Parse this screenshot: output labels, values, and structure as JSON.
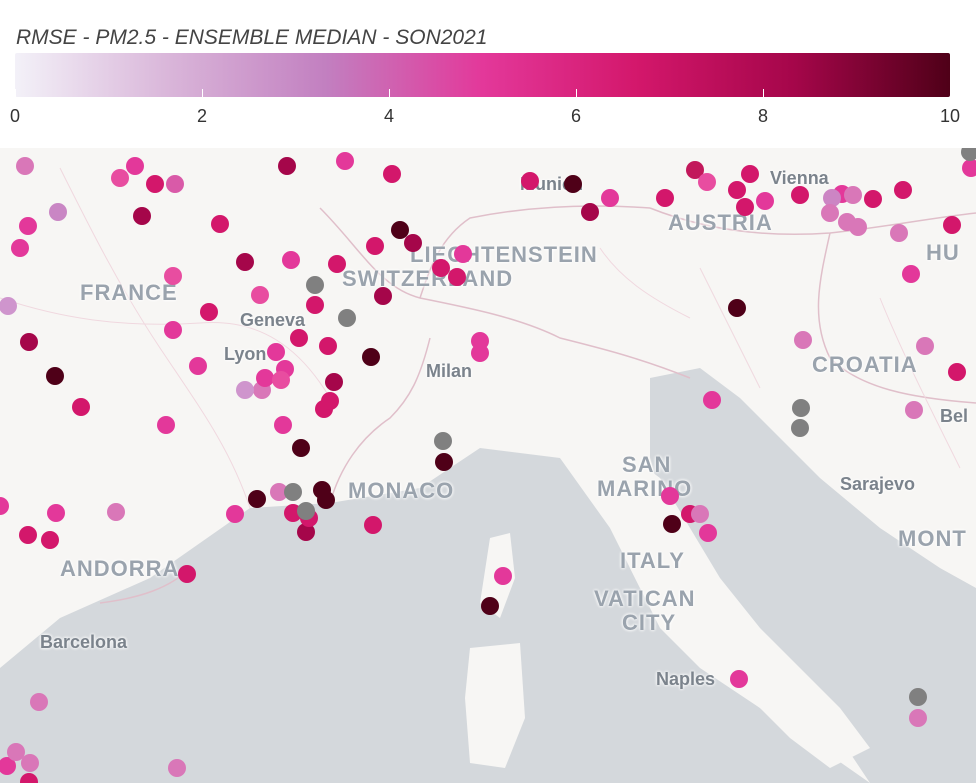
{
  "legend": {
    "title": "RMSE - PM2.5 - ENSEMBLE MEDIAN - SON2021",
    "ticks": [
      "0",
      "2",
      "4",
      "6",
      "8",
      "10"
    ],
    "color_stops": [
      "#f3f1f8",
      "#d9b5d9",
      "#c27fc0",
      "#e3389a",
      "#d3176b",
      "#a5064a",
      "#4f0018"
    ],
    "min": 0,
    "max": 10
  },
  "map": {
    "country_labels": [
      "FRANCE",
      "SWITZERLAND",
      "LIECHTENSTEIN",
      "AUSTRIA",
      "CROATIA",
      "ITALY",
      "SAN",
      "MARINO",
      "VATICAN",
      "CITY",
      "MONACO",
      "ANDORRA",
      "MONT",
      "HU"
    ],
    "city_labels": [
      "Munich",
      "Geneva",
      "Lyon",
      "Milan",
      "Barcelona",
      "Naples",
      "Sarajevo",
      "Vienna",
      "Bel"
    ],
    "no_data_color": "#808080",
    "stations": [
      [
        "#d977b8",
        2.8
      ],
      [
        "#e84da0",
        5.8
      ],
      [
        "#d3176b",
        7.5
      ],
      [
        "#d95aa8",
        3.6
      ],
      [
        "#e3389a",
        6.0
      ],
      [
        "#a5064a",
        8.5
      ],
      [
        "#e3389a",
        5.9
      ],
      [
        "#d3176b",
        7.2
      ],
      [
        "#d3176b",
        7.4
      ],
      [
        "#4f0018",
        9.5
      ],
      [
        "#e3389a",
        6.2
      ],
      [
        "#a5064a",
        8.4
      ],
      [
        "#d3176b",
        7.8
      ],
      [
        "#c2185b",
        7.9
      ],
      [
        "#e84da0",
        6.1
      ],
      [
        "#d3176b",
        7.6
      ],
      [
        "#d3176b",
        7.7
      ],
      [
        "#e3389a",
        6.4
      ],
      [
        "#d3176b",
        7.3
      ],
      [
        "#d3176b",
        7.6
      ],
      [
        "#e3389a",
        6.3
      ],
      [
        "#cc85c4",
        3.9
      ],
      [
        "#d977b8",
        2.9
      ],
      [
        "#d3176b",
        7.4
      ],
      [
        "#d977b8",
        3.1
      ],
      [
        "#d977b8",
        3.2
      ],
      [
        "#d977b8",
        3.4
      ],
      [
        "#d3176b",
        7.5
      ],
      [
        "#d977b8",
        3.3
      ],
      [
        "#d3176b",
        7.7
      ],
      [
        "#e3389a",
        6.1
      ],
      [
        "#c986c4",
        3.7
      ],
      [
        "#e3389a",
        6.0
      ],
      [
        "#e3389a",
        5.8
      ],
      [
        "#a5064a",
        8.3
      ],
      [
        "#d3176b",
        7.9
      ],
      [
        "#e84da0",
        5.9
      ],
      [
        "#a5064a",
        8.6
      ],
      [
        "#e3389a",
        6.2
      ],
      [
        "#d3176b",
        7.4
      ],
      [
        "#4f0018",
        9.6
      ],
      [
        "#a5064a",
        8.2
      ],
      [
        "#d3176b",
        7.5
      ],
      [
        "#e3389a",
        6.3
      ],
      [
        "#d3176b",
        7.6
      ],
      [
        "#d3176b",
        7.4
      ],
      [
        "#a5064a",
        8.4
      ],
      [
        "#e84da0",
        5.8
      ],
      [
        "#d3176b",
        7.2
      ],
      [
        "#cf95cd",
        3.5
      ],
      [
        "#e3389a",
        6.0
      ],
      [
        "#d3176b",
        7.5
      ],
      [
        "#a5064a",
        8.7
      ],
      [
        "#d3176b",
        7.1
      ],
      [
        "#d3176b",
        7.8
      ],
      [
        "#e3389a",
        6.1
      ],
      [
        "#4f0018",
        9.5
      ],
      [
        "#e3389a",
        6.2
      ],
      [
        "#d977b8",
        3.6
      ],
      [
        "#e3389a",
        6.4
      ],
      [
        "#cf95cd",
        3.3
      ],
      [
        "#4f0018",
        9.4
      ],
      [
        "#a5064a",
        8.2
      ],
      [
        "#e3389a",
        6.0
      ],
      [
        "#e84da0",
        5.9
      ],
      [
        "#d3176b",
        7.3
      ],
      [
        "#d3176b",
        7.5
      ],
      [
        "#e3389a",
        6.2
      ],
      [
        "#4f0018",
        9.6
      ],
      [
        "#e3389a",
        6.0
      ],
      [
        "#d3176b",
        7.4
      ],
      [
        "#e3389a",
        6.1
      ],
      [
        "#e3389a",
        6.3
      ],
      [
        "#4f0018",
        9.2
      ],
      [
        "#d977b8",
        3.4
      ],
      [
        "#d977b8",
        3.2
      ],
      [
        "#d3176b",
        7.6
      ],
      [
        "#d977b8",
        3.6
      ],
      [
        "#e3389a",
        6.1
      ],
      [
        "#e3389a",
        6.0
      ],
      [
        "#4f0018",
        9.5
      ],
      [
        "#e3389a",
        6.2
      ],
      [
        "#d977b8",
        3.5
      ],
      [
        "#d3176b",
        7.7
      ],
      [
        "#d3176b",
        7.3
      ],
      [
        "#e3389a",
        6.1
      ],
      [
        "#4f0018",
        9.3
      ],
      [
        "#d977b8",
        3.8
      ],
      [
        "#d3176b",
        7.6
      ],
      [
        "#a5064a",
        8.1
      ],
      [
        "#d3176b",
        7.9
      ],
      [
        "#4f0018",
        9.5
      ],
      [
        "#4f0018",
        9.6
      ],
      [
        "#d3176b",
        7.5
      ],
      [
        "#e3389a",
        6.2
      ],
      [
        "#d3176b",
        7.7
      ],
      [
        "#e3389a",
        6.0
      ],
      [
        "#4f0018",
        9.7
      ],
      [
        "#e3389a",
        6.2
      ],
      [
        "#d3176b",
        7.2
      ],
      [
        "#d977b8",
        3.4
      ],
      [
        "#4f0018",
        9.3
      ],
      [
        "#e3389a",
        5.9
      ],
      [
        "#d3176b",
        7.4
      ],
      [
        "#e3389a",
        6.3
      ],
      [
        "#d977b8",
        3.6
      ],
      [
        "#d977b8",
        3.2
      ],
      [
        "#e3389a",
        6.0
      ],
      [
        "#d977b8",
        3.3
      ],
      [
        "#d977b8",
        3.1
      ],
      [
        "#d977b8",
        3.5
      ],
      [
        "#d3176b",
        7.5
      ],
      [
        "#e3389a",
        6.1
      ],
      [
        "#d977b8",
        3.7
      ],
      [
        "#e3389a",
        6.2
      ],
      [
        "#d977b8",
        3.4
      ],
      [
        "#d977b8",
        3.0
      ],
      [
        "#e3389a",
        6.1
      ],
      [
        "#d977b8",
        3.3
      ],
      [
        "#e3389a",
        6.0
      ]
    ]
  }
}
